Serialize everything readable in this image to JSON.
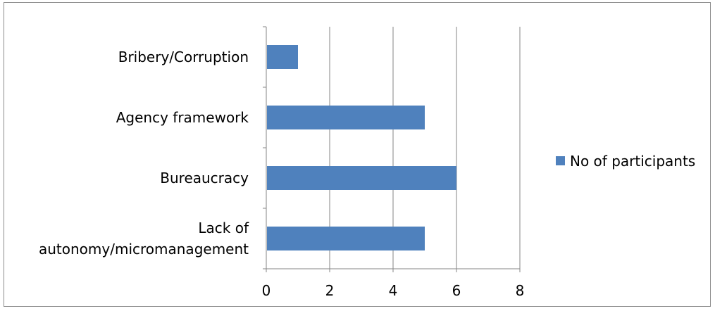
{
  "colors": {
    "bar": "#4F81BD",
    "grid": "#868686",
    "axis": "#868686"
  },
  "chart_data": {
    "type": "bar",
    "orientation": "horizontal",
    "categories": [
      [
        "Bribery/Corruption"
      ],
      [
        "Agency framework"
      ],
      [
        "Bureaucracy"
      ],
      [
        "Lack of",
        "autonomy/micromanagement"
      ]
    ],
    "series": [
      {
        "name": "No of participants",
        "values": [
          1,
          5,
          6,
          5
        ]
      }
    ],
    "xlim": [
      0,
      8
    ],
    "xticks": [
      "0",
      "2",
      "4",
      "6",
      "8"
    ],
    "grid": "vertical major gridlines",
    "legend": "right"
  }
}
